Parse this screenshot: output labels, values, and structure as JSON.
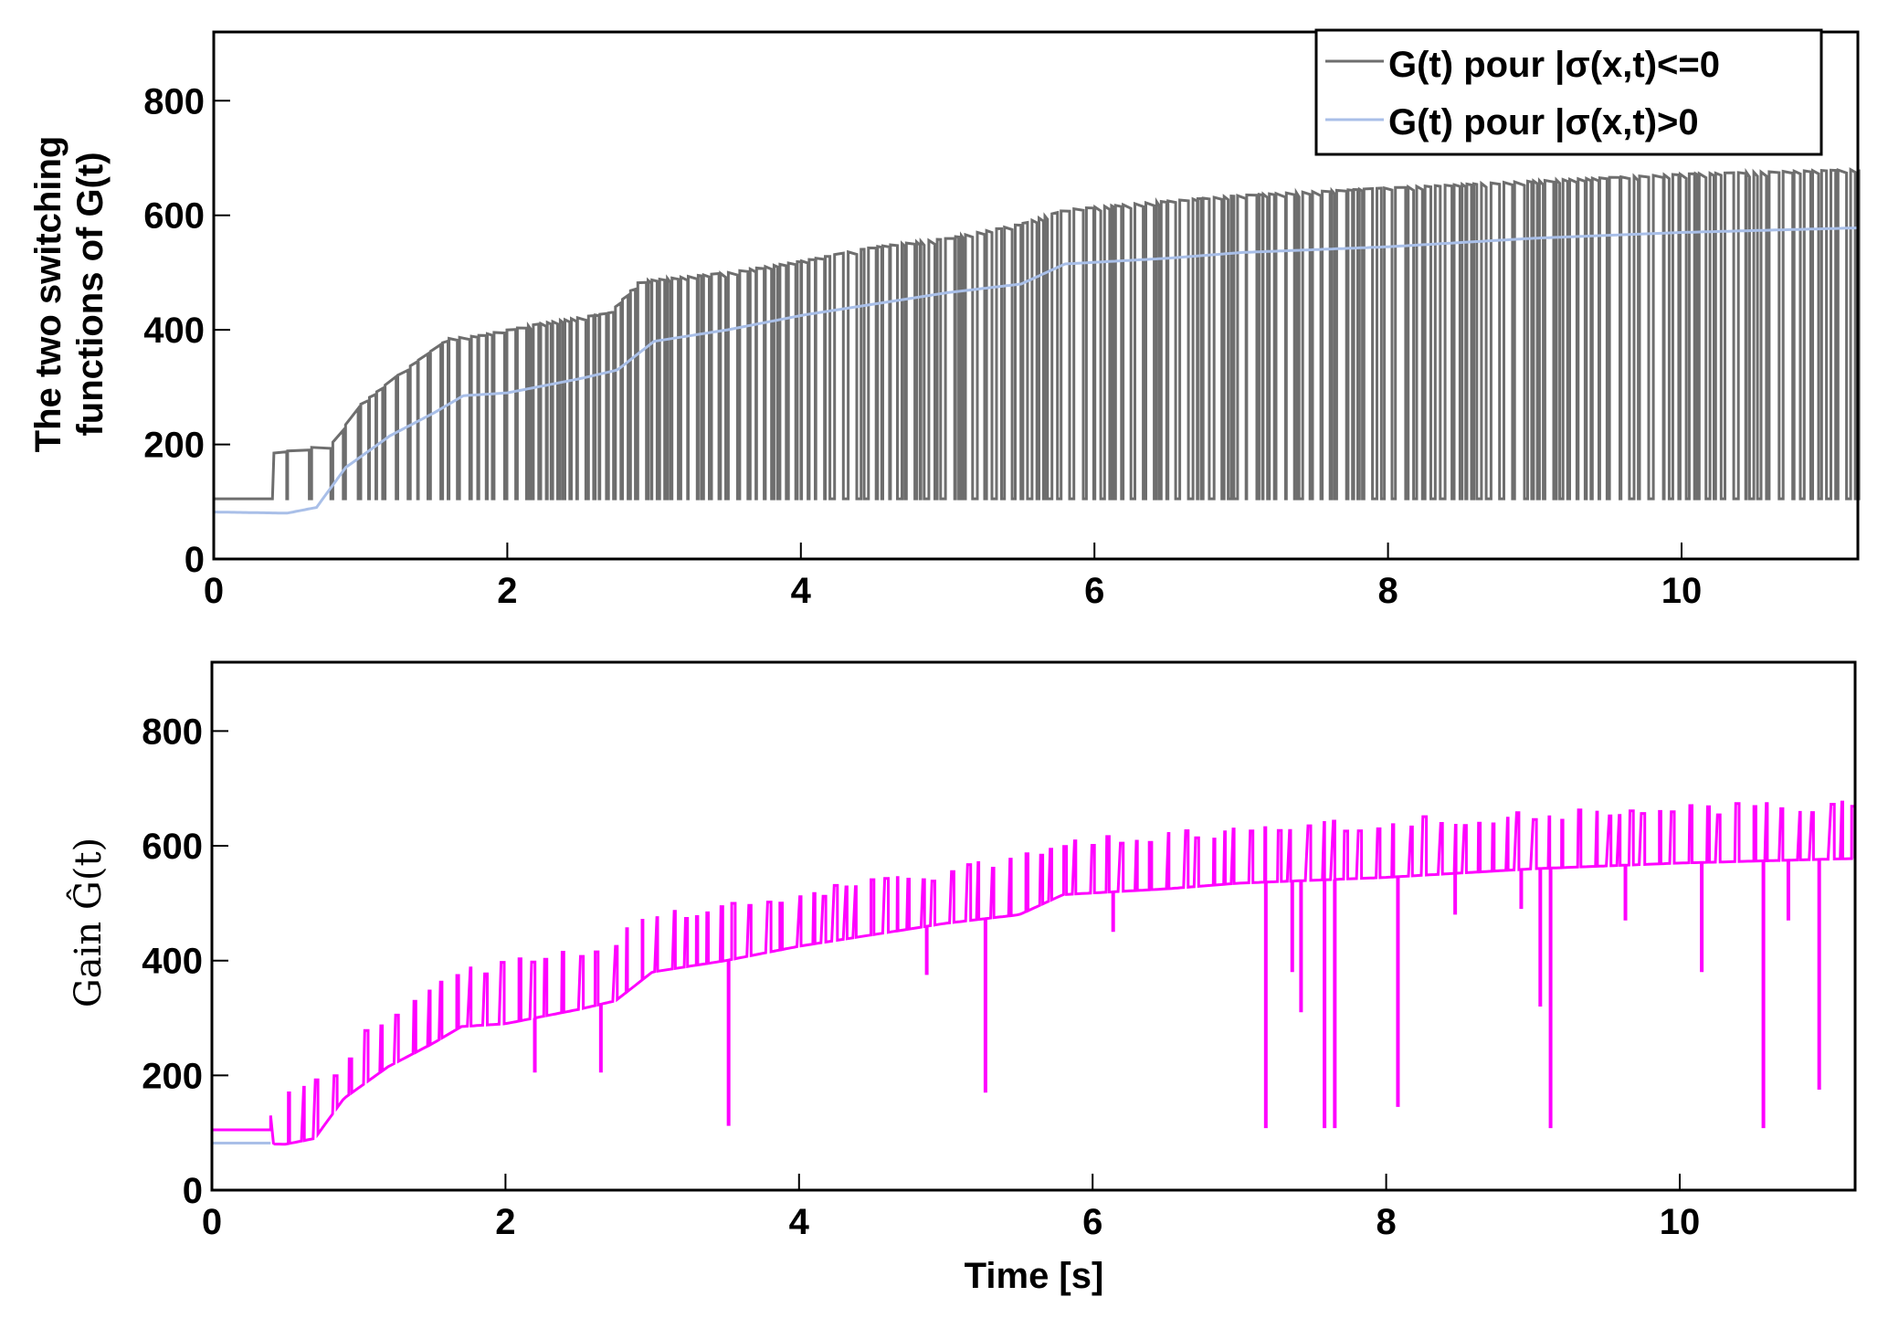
{
  "chart_data": [
    {
      "type": "line",
      "panel": "top",
      "ylabel_lines": [
        "The two switching",
        "functions of G(t)"
      ],
      "xlabel": "",
      "xlim": [
        0,
        11.2
      ],
      "ylim": [
        0,
        920
      ],
      "x_ticks": [
        "0",
        "2",
        "4",
        "6",
        "8",
        "10"
      ],
      "x_tick_values": [
        0,
        2,
        4,
        6,
        8,
        10
      ],
      "y_ticks": [
        "0",
        "200",
        "400",
        "600",
        "800"
      ],
      "y_tick_values": [
        0,
        200,
        400,
        600,
        800
      ],
      "legend": {
        "placement": "top-right",
        "entries": [
          {
            "label": "G(t) pour |σ(x,t)<=0",
            "color": "#6e6e6e"
          },
          {
            "label": "G(t) pour |σ(x,t)>0",
            "color": "#a9bfe8"
          }
        ]
      },
      "series": [
        {
          "name": "G(t) pour |σ(x,t)<=0",
          "color": "#6e6e6e",
          "baseline_value": 105,
          "upper_envelope": {
            "x": [
              0,
              0.4,
              0.41,
              0.8,
              1.0,
              1.3,
              1.6,
              1.8,
              2.2,
              2.7,
              2.9,
              3.5,
              4.0,
              4.5,
              5.0,
              5.5,
              5.8,
              6.5,
              7.0,
              8.0,
              9.0,
              10.0,
              11.2
            ],
            "y": [
              105,
              105,
              185,
              200,
              270,
              330,
              385,
              390,
              410,
              430,
              485,
              500,
              520,
              545,
              560,
              585,
              610,
              625,
              635,
              648,
              660,
              672,
              680
            ]
          },
          "switching": "rapid switching between upper envelope and ~105 from t≈0.4 s to 11.2 s"
        },
        {
          "name": "G(t) pour |σ(x,t)>0",
          "color": "#a9bfe8",
          "x": [
            0,
            0.5,
            0.7,
            0.9,
            1.2,
            1.5,
            1.7,
            2.0,
            2.5,
            2.75,
            3.0,
            3.5,
            4.0,
            4.5,
            5.0,
            5.5,
            5.8,
            6.5,
            7.0,
            8.0,
            9.0,
            10.0,
            11.2
          ],
          "y": [
            82,
            80,
            90,
            160,
            215,
            255,
            285,
            290,
            315,
            330,
            380,
            400,
            425,
            445,
            465,
            480,
            515,
            525,
            535,
            545,
            560,
            570,
            578
          ]
        }
      ]
    },
    {
      "type": "line",
      "panel": "bottom",
      "ylabel": "Gain Ĝ(t)",
      "xlabel": "Time [s]",
      "xlim": [
        0,
        11.2
      ],
      "ylim": [
        0,
        920
      ],
      "x_ticks": [
        "0",
        "2",
        "4",
        "6",
        "8",
        "10"
      ],
      "x_tick_values": [
        0,
        2,
        4,
        6,
        8,
        10
      ],
      "y_ticks": [
        "0",
        "200",
        "400",
        "600",
        "800"
      ],
      "y_tick_values": [
        0,
        200,
        400,
        600,
        800
      ],
      "series": [
        {
          "name": "Gain Ĝ(t)",
          "color": "#ff00ff",
          "initial_value": 105,
          "base_follows": "G(t) pour |σ(x,t)>0",
          "spikes_up_to": "G(t) pour |σ(x,t)<=0 upper envelope",
          "deep_drops": [
            {
              "t": 2.2,
              "y": 205
            },
            {
              "t": 2.65,
              "y": 205
            },
            {
              "t": 3.52,
              "y": 112
            },
            {
              "t": 4.87,
              "y": 375
            },
            {
              "t": 5.27,
              "y": 170
            },
            {
              "t": 6.14,
              "y": 450
            },
            {
              "t": 7.18,
              "y": 108
            },
            {
              "t": 7.36,
              "y": 380
            },
            {
              "t": 7.42,
              "y": 310
            },
            {
              "t": 7.58,
              "y": 108
            },
            {
              "t": 7.65,
              "y": 108
            },
            {
              "t": 8.08,
              "y": 145
            },
            {
              "t": 8.47,
              "y": 480
            },
            {
              "t": 8.92,
              "y": 490
            },
            {
              "t": 9.05,
              "y": 320
            },
            {
              "t": 9.12,
              "y": 108
            },
            {
              "t": 9.63,
              "y": 470
            },
            {
              "t": 10.15,
              "y": 380
            },
            {
              "t": 10.57,
              "y": 108
            },
            {
              "t": 10.74,
              "y": 470
            },
            {
              "t": 10.95,
              "y": 175
            }
          ]
        },
        {
          "name": "G(t) pour |σ(x,t)>0 (initial segment)",
          "color": "#a9bfe8",
          "x": [
            0,
            0.4
          ],
          "y": [
            82,
            82
          ]
        }
      ]
    }
  ]
}
